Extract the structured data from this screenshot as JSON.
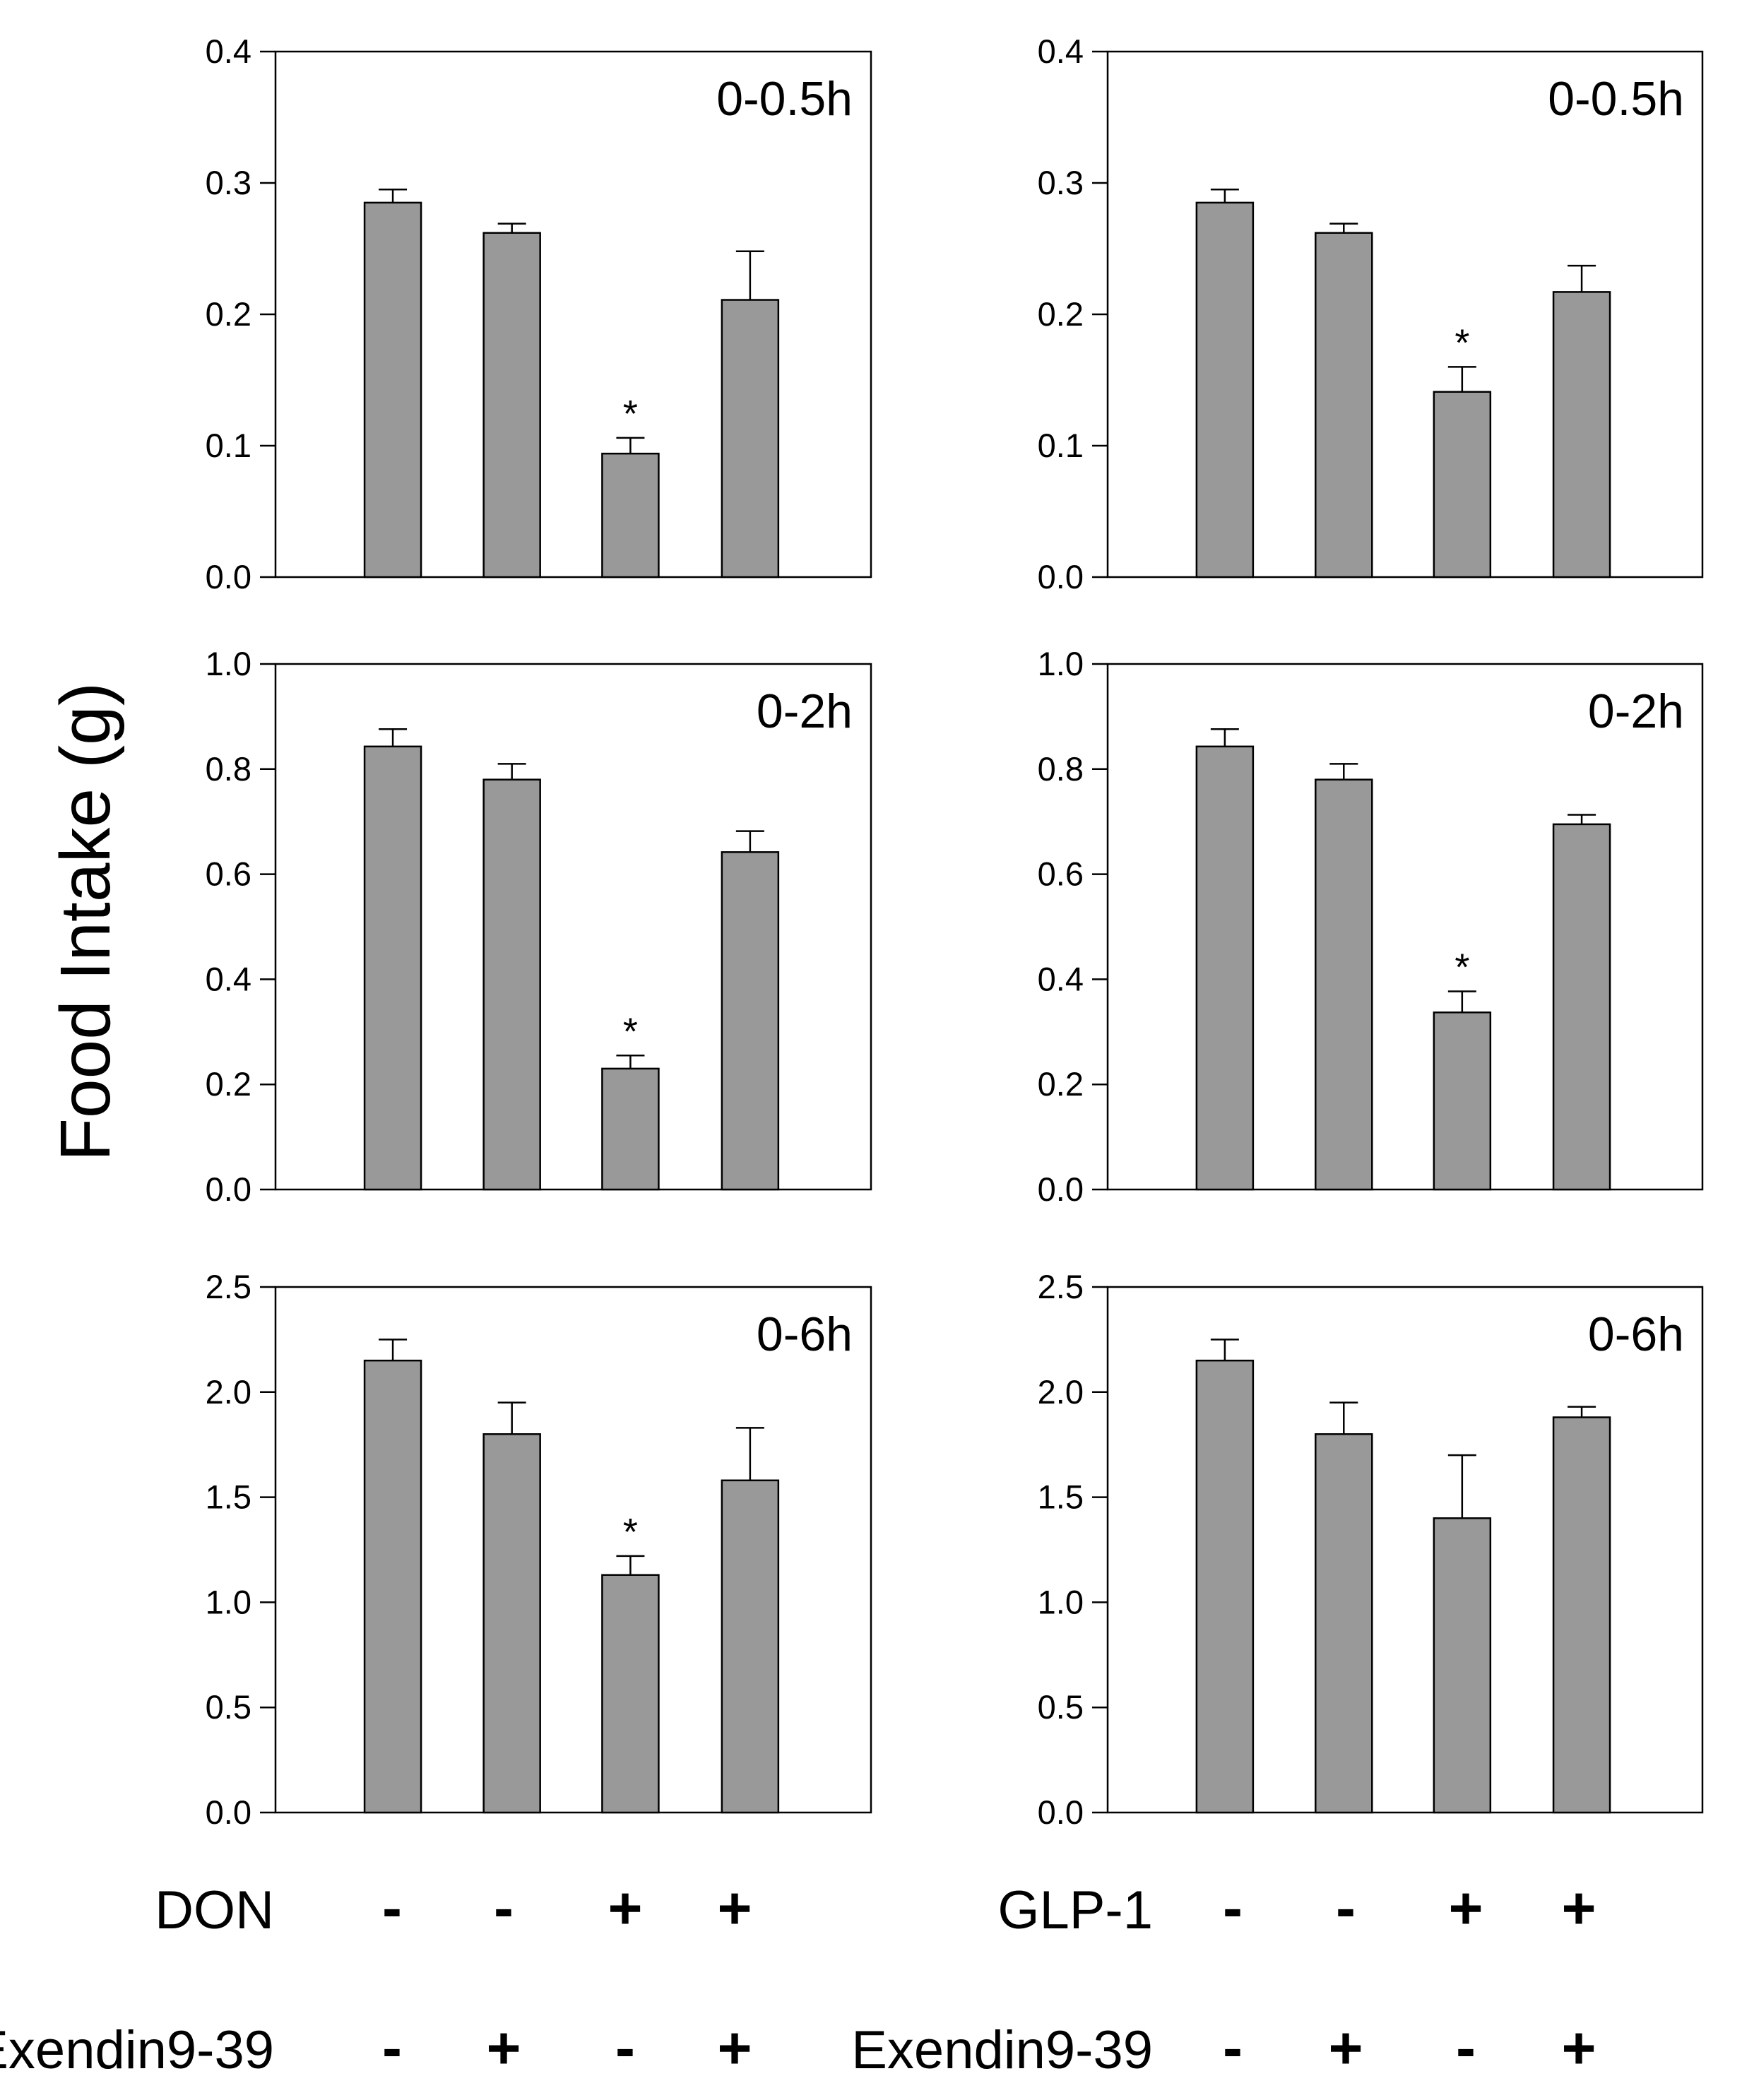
{
  "y_axis_label": "Food Intake (g)",
  "treatments": {
    "left": [
      {
        "name": "DON",
        "signs": [
          "-",
          "-",
          "+",
          "+"
        ]
      },
      {
        "name": "Exendin9-39",
        "signs": [
          "-",
          "+",
          "-",
          "+"
        ]
      }
    ],
    "right": [
      {
        "name": "GLP-1",
        "signs": [
          "-",
          "-",
          "+",
          "+"
        ]
      },
      {
        "name": "Exendin9-39",
        "signs": [
          "-",
          "+",
          "-",
          "+"
        ]
      }
    ]
  },
  "chart_data": [
    {
      "type": "bar",
      "panel": "left-top",
      "label": "0-0.5h",
      "ylim": [
        0,
        0.4
      ],
      "yticks": [
        "0.0",
        "0.1",
        "0.2",
        "0.3",
        "0.4"
      ],
      "values": [
        0.285,
        0.262,
        0.094,
        0.211
      ],
      "errors": [
        0.01,
        0.007,
        0.012,
        0.037
      ],
      "significant": [
        false,
        false,
        true,
        false
      ]
    },
    {
      "type": "bar",
      "panel": "left-middle",
      "label": "0-2h",
      "ylim": [
        0,
        1.0
      ],
      "yticks": [
        "0.0",
        "0.2",
        "0.4",
        "0.6",
        "0.8",
        "1.0"
      ],
      "values": [
        0.843,
        0.78,
        0.23,
        0.642
      ],
      "errors": [
        0.033,
        0.03,
        0.025,
        0.04
      ],
      "significant": [
        false,
        false,
        true,
        false
      ]
    },
    {
      "type": "bar",
      "panel": "left-bottom",
      "label": "0-6h",
      "ylim": [
        0,
        2.5
      ],
      "yticks": [
        "0.0",
        "0.5",
        "1.0",
        "1.5",
        "2.0",
        "2.5"
      ],
      "values": [
        2.15,
        1.8,
        1.13,
        1.58
      ],
      "errors": [
        0.1,
        0.15,
        0.09,
        0.25
      ],
      "significant": [
        false,
        false,
        true,
        false
      ]
    },
    {
      "type": "bar",
      "panel": "right-top",
      "label": "0-0.5h",
      "ylim": [
        0,
        0.4
      ],
      "yticks": [
        "0.0",
        "0.1",
        "0.2",
        "0.3",
        "0.4"
      ],
      "values": [
        0.285,
        0.262,
        0.141,
        0.217
      ],
      "errors": [
        0.01,
        0.007,
        0.019,
        0.02
      ],
      "significant": [
        false,
        false,
        true,
        false
      ]
    },
    {
      "type": "bar",
      "panel": "right-middle",
      "label": "0-2h",
      "ylim": [
        0,
        1.0
      ],
      "yticks": [
        "0.0",
        "0.2",
        "0.4",
        "0.6",
        "0.8",
        "1.0"
      ],
      "values": [
        0.843,
        0.78,
        0.337,
        0.695
      ],
      "errors": [
        0.033,
        0.03,
        0.04,
        0.018
      ],
      "significant": [
        false,
        false,
        true,
        false
      ]
    },
    {
      "type": "bar",
      "panel": "right-bottom",
      "label": "0-6h",
      "ylim": [
        0,
        2.5
      ],
      "yticks": [
        "0.0",
        "0.5",
        "1.0",
        "1.5",
        "2.0",
        "2.5"
      ],
      "values": [
        2.15,
        1.8,
        1.4,
        1.88
      ],
      "errors": [
        0.1,
        0.15,
        0.3,
        0.05
      ],
      "significant": [
        false,
        false,
        false,
        false
      ]
    }
  ]
}
